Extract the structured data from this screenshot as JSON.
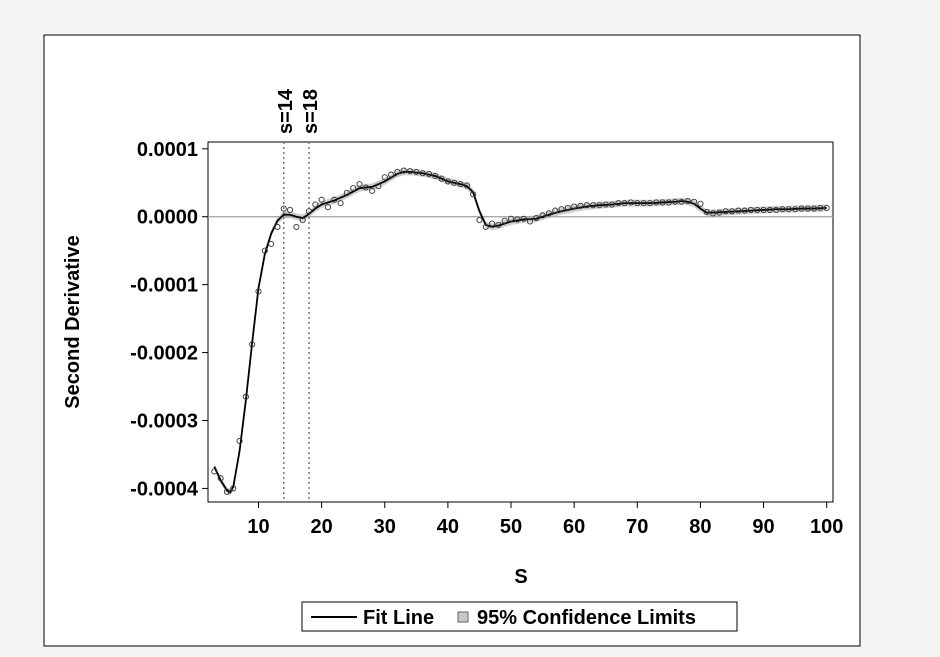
{
  "colors": {
    "page_bg": "#f5f5f5",
    "figure_bg": "#ffffff",
    "line": "#000000",
    "band": "#c8c8c8",
    "reference": "#a0a0a0",
    "markers": "#333333"
  },
  "chart_data": {
    "type": "scatter",
    "xlabel": "S",
    "ylabel": "Second Derivative",
    "xlim": [
      2,
      101
    ],
    "ylim": [
      -0.00042,
      0.00011
    ],
    "xticks": [
      10,
      20,
      30,
      40,
      50,
      60,
      70,
      80,
      90,
      100
    ],
    "xtick_labels": [
      "10",
      "20",
      "30",
      "40",
      "50",
      "60",
      "70",
      "80",
      "90",
      "100"
    ],
    "yticks": [
      0.0001,
      0,
      -0.0001,
      -0.0002,
      -0.0003,
      -0.0004
    ],
    "ytick_labels": [
      "0.0001",
      "0.0000",
      "-0.0001",
      "-0.0002",
      "-0.0003",
      "-0.0004"
    ],
    "reference_line_y": 0,
    "vertical_lines": [
      {
        "x": 14,
        "label": "s=14"
      },
      {
        "x": 18,
        "label": "s=18"
      }
    ],
    "legend": {
      "placement": "bottom",
      "entries": [
        {
          "label": "Fit Line",
          "kind": "line"
        },
        {
          "label": "95% Confidence Limits",
          "kind": "band"
        }
      ]
    },
    "band_halfwidth": 5e-06,
    "series": [
      {
        "kind": "points",
        "x": [
          3,
          4,
          5,
          6,
          7,
          8,
          9,
          10,
          11,
          12,
          13,
          14,
          15,
          16,
          17,
          18,
          19,
          20,
          21,
          22,
          23,
          24,
          25,
          26,
          27,
          28,
          29,
          30,
          31,
          32,
          33,
          34,
          35,
          36,
          37,
          38,
          39,
          40,
          41,
          42,
          43,
          44,
          45,
          46,
          47,
          48,
          49,
          50,
          51,
          52,
          53,
          54,
          55,
          56,
          57,
          58,
          59,
          60,
          61,
          62,
          63,
          64,
          65,
          66,
          67,
          68,
          69,
          70,
          71,
          72,
          73,
          74,
          75,
          76,
          77,
          78,
          79,
          80,
          81,
          82,
          83,
          84,
          85,
          86,
          87,
          88,
          89,
          90,
          91,
          92,
          93,
          94,
          95,
          96,
          97,
          98,
          99,
          100
        ],
        "y": [
          -0.000375,
          -0.000385,
          -0.000405,
          -0.0004,
          -0.00033,
          -0.000265,
          -0.000188,
          -0.00011,
          -5e-05,
          -4e-05,
          -1.5e-05,
          1.2e-05,
          1e-05,
          -1.5e-05,
          -5e-06,
          8e-06,
          1.8e-05,
          2.5e-05,
          1.4e-05,
          2.5e-05,
          2e-05,
          3.5e-05,
          4.2e-05,
          4.8e-05,
          4.3e-05,
          3.8e-05,
          4.5e-05,
          5.8e-05,
          6.2e-05,
          6.6e-05,
          6.8e-05,
          6.7e-05,
          6.6e-05,
          6.4e-05,
          6.3e-05,
          6e-05,
          5.6e-05,
          5.2e-05,
          5e-05,
          4.8e-05,
          4.6e-05,
          3.3e-05,
          -5e-06,
          -1.5e-05,
          -1e-05,
          -1.2e-05,
          -6e-06,
          -3e-06,
          -4e-06,
          -3e-06,
          -7e-06,
          -2e-06,
          2e-06,
          5e-06,
          9e-06,
          1.1e-05,
          1.3e-05,
          1.5e-05,
          1.6e-05,
          1.7e-05,
          1.7e-05,
          1.7e-05,
          1.8e-05,
          1.8e-05,
          2e-05,
          2e-05,
          2.1e-05,
          2e-05,
          2e-05,
          2e-05,
          2.1e-05,
          2.1e-05,
          2.1e-05,
          2.2e-05,
          2.2e-05,
          2.3e-05,
          2.2e-05,
          1.9e-05,
          7e-06,
          5e-06,
          6e-06,
          8e-06,
          8e-06,
          9e-06,
          9e-06,
          1e-05,
          1e-05,
          1e-05,
          1e-05,
          1e-05,
          1.1e-05,
          1.1e-05,
          1.1e-05,
          1.2e-05,
          1.2e-05,
          1.2e-05,
          1.3e-05,
          1.3e-05
        ]
      },
      {
        "name": "Fit Line",
        "kind": "line",
        "x": [
          3,
          4,
          5,
          5.5,
          6,
          7,
          8,
          9,
          10,
          11,
          12,
          13,
          14,
          15,
          16,
          17,
          18,
          19,
          20,
          22,
          24,
          26,
          28,
          30,
          32,
          33,
          34,
          36,
          38,
          40,
          42,
          43,
          44,
          45,
          46,
          47,
          48,
          50,
          52,
          54,
          56,
          58,
          60,
          62,
          64,
          66,
          68,
          70,
          72,
          74,
          76,
          77,
          78,
          79,
          80,
          81,
          82,
          84,
          86,
          88,
          90,
          92,
          94,
          96,
          98,
          100
        ],
        "y": [
          -0.000368,
          -0.000388,
          -0.000403,
          -0.000406,
          -0.000398,
          -0.000345,
          -0.00027,
          -0.000185,
          -0.000105,
          -5.5e-05,
          -2.5e-05,
          -6e-06,
          3e-06,
          3e-06,
          0.0,
          -2e-06,
          4e-06,
          1.2e-05,
          1.8e-05,
          2.4e-05,
          3.2e-05,
          4.2e-05,
          4.4e-05,
          5.2e-05,
          6.3e-05,
          6.6e-05,
          6.6e-05,
          6.4e-05,
          6e-05,
          5.2e-05,
          4.8e-05,
          4.5e-05,
          3.6e-05,
          8e-06,
          -1.2e-05,
          -1.5e-05,
          -1.3e-05,
          -7e-06,
          -4e-06,
          -3e-06,
          3e-06,
          8e-06,
          1.2e-05,
          1.5e-05,
          1.7e-05,
          1.8e-05,
          2e-05,
          2e-05,
          2e-05,
          2.1e-05,
          2.2e-05,
          2.3e-05,
          2.2e-05,
          1.9e-05,
          1.2e-05,
          6e-06,
          6e-06,
          7e-06,
          8e-06,
          9e-06,
          1e-05,
          1.1e-05,
          1.1e-05,
          1.2e-05,
          1.2e-05,
          1.3e-05
        ]
      }
    ]
  }
}
